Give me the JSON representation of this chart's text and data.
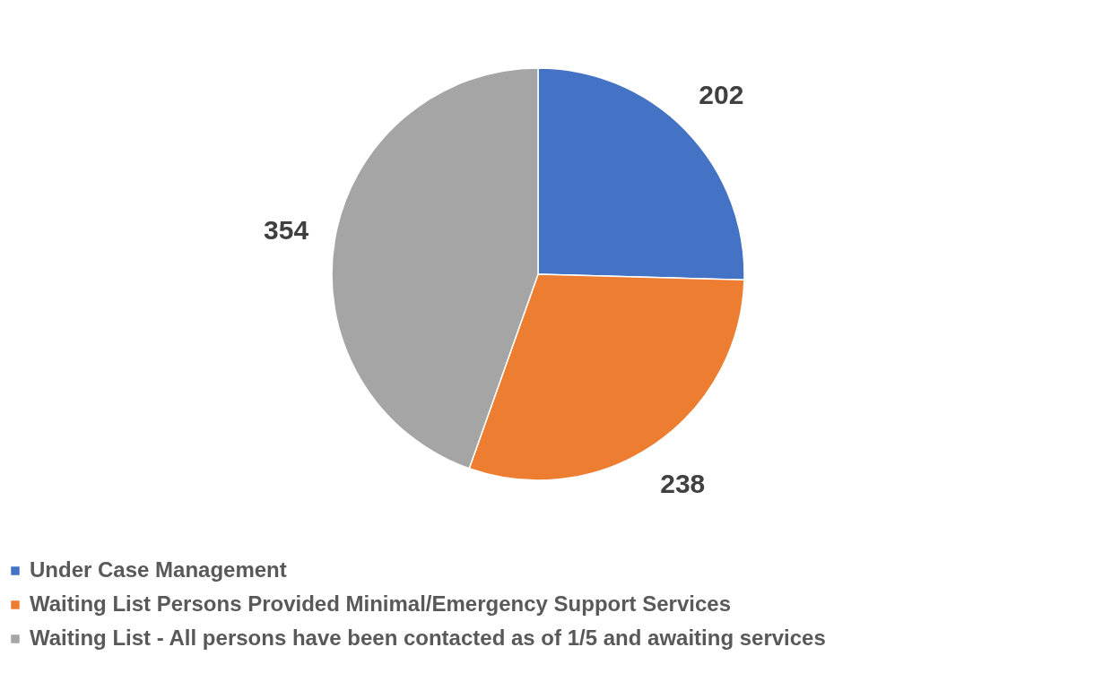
{
  "chart_data": {
    "type": "pie",
    "categories": [
      "Under Case Management",
      "Waiting List Persons Provided Minimal/Emergency Support Services",
      "Waiting List - All persons have been contacted as of 1/5 and awaiting services"
    ],
    "values": [
      202,
      238,
      354
    ],
    "colors": [
      "#4472c4",
      "#ed7d31",
      "#a5a5a5"
    ],
    "data_labels": true,
    "legend": "bottom"
  }
}
